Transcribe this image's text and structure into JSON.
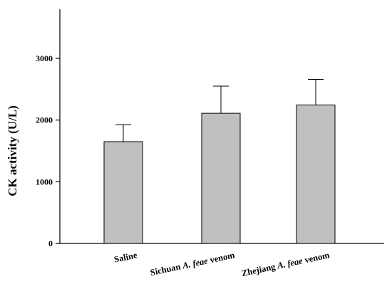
{
  "chart_data": {
    "type": "bar",
    "ylabel": "CK activity (U/L)",
    "ylim": [
      0,
      3800
    ],
    "yticks": [
      0,
      1000,
      2000,
      3000
    ],
    "tick_labels": [
      "0",
      "1000",
      "2000",
      "3000"
    ],
    "categories": [
      {
        "parts": [
          {
            "text": "Saline",
            "italic": false
          }
        ]
      },
      {
        "parts": [
          {
            "text": "Sichuan ",
            "italic": false
          },
          {
            "text": "A. feae",
            "italic": true
          },
          {
            "text": " venom",
            "italic": false
          }
        ]
      },
      {
        "parts": [
          {
            "text": "Zhejiang ",
            "italic": false
          },
          {
            "text": "A. feae",
            "italic": true
          },
          {
            "text": " venom",
            "italic": false
          }
        ]
      }
    ],
    "values": [
      1650,
      2110,
      2245
    ],
    "error_upper": [
      275,
      440,
      415
    ],
    "bar_color": "#c0c0c0",
    "grid": false,
    "legend": "none"
  }
}
